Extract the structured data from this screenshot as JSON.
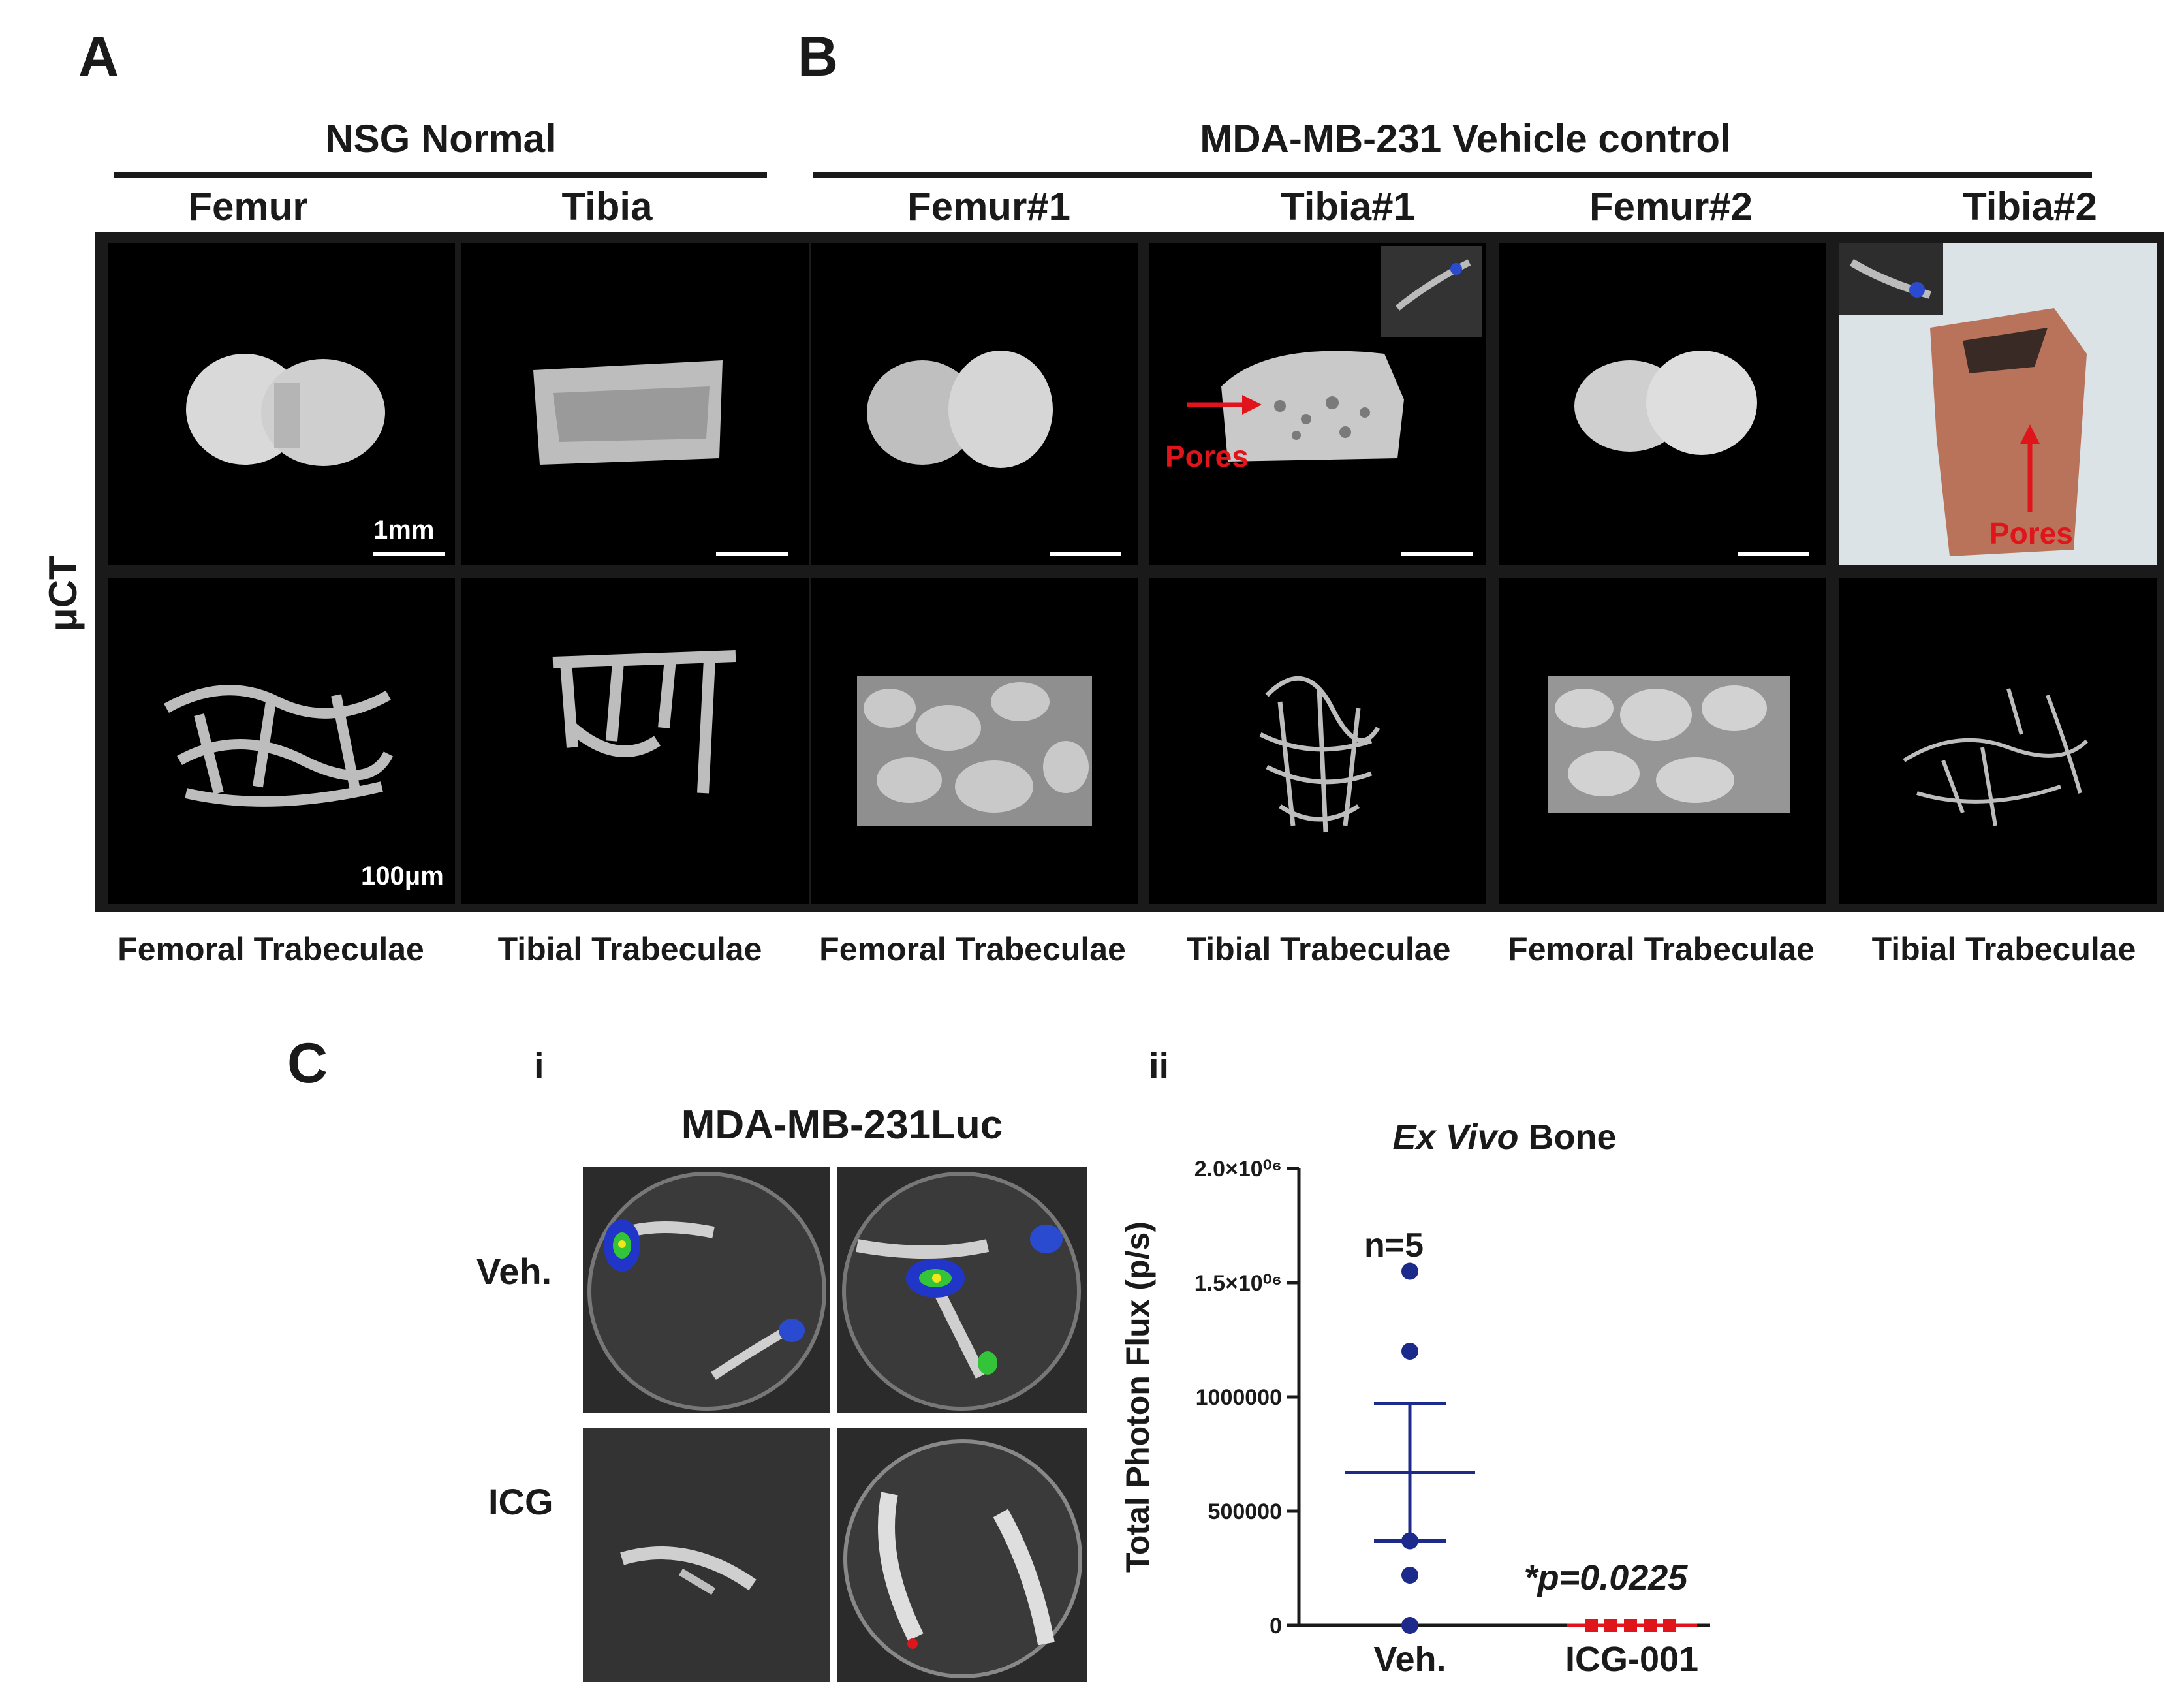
{
  "panels": {
    "a_letter": "A",
    "b_letter": "B",
    "c_letter": "C",
    "c_i_label": "i",
    "c_ii_label": "ii"
  },
  "panel_a": {
    "group_title": "NSG Normal",
    "columns": [
      "Femur",
      "Tibia"
    ],
    "bottom_labels": [
      "Femoral Trabeculae",
      "Tibial Trabeculae"
    ],
    "scale_top": "1mm",
    "scale_bottom": "100μm"
  },
  "panel_b": {
    "group_title": "MDA-MB-231 Vehicle control",
    "columns": [
      "Femur#1",
      "Tibia#1",
      "Femur#2",
      "Tibia#2"
    ],
    "bottom_labels": [
      "Femoral Trabeculae",
      "Tibial Trabeculae",
      "Femoral Trabeculae",
      "Tibial Trabeculae"
    ],
    "pores_label_1": "Pores",
    "pores_label_2": "Pores"
  },
  "uct_label": "μCT",
  "panel_c_i": {
    "title": "MDA-MB-231Luc",
    "row_labels": [
      "Veh.",
      "ICG"
    ]
  },
  "chart_data": {
    "type": "scatter",
    "title_italic": "Ex Vivo",
    "title_rest": " Bone",
    "ylabel": "Total Photon Flux (p/s)",
    "categories": [
      "Veh.",
      "ICG-001"
    ],
    "ylim": [
      0,
      2000000
    ],
    "yticks": [
      {
        "value": 0,
        "label": "0"
      },
      {
        "value": 500000,
        "label": "500000"
      },
      {
        "value": 1000000,
        "label": "1000000"
      },
      {
        "value": 1500000,
        "label": "1.5×10⁰⁶"
      },
      {
        "value": 2000000,
        "label": "2.0×10⁰⁶"
      }
    ],
    "series": [
      {
        "category": "Veh.",
        "color": "#1c2a8c",
        "values": [
          1550000,
          1200000,
          370000,
          220000,
          0
        ],
        "mean": 670000,
        "sem_low": 370000,
        "sem_high": 970000
      },
      {
        "category": "ICG-001",
        "color": "#e0141b",
        "values": [
          0,
          0,
          0,
          0,
          0
        ],
        "mean": 0,
        "sem_low": 0,
        "sem_high": 0
      }
    ],
    "annotations": {
      "n": "n=5",
      "p": "*p=0.0225"
    }
  }
}
